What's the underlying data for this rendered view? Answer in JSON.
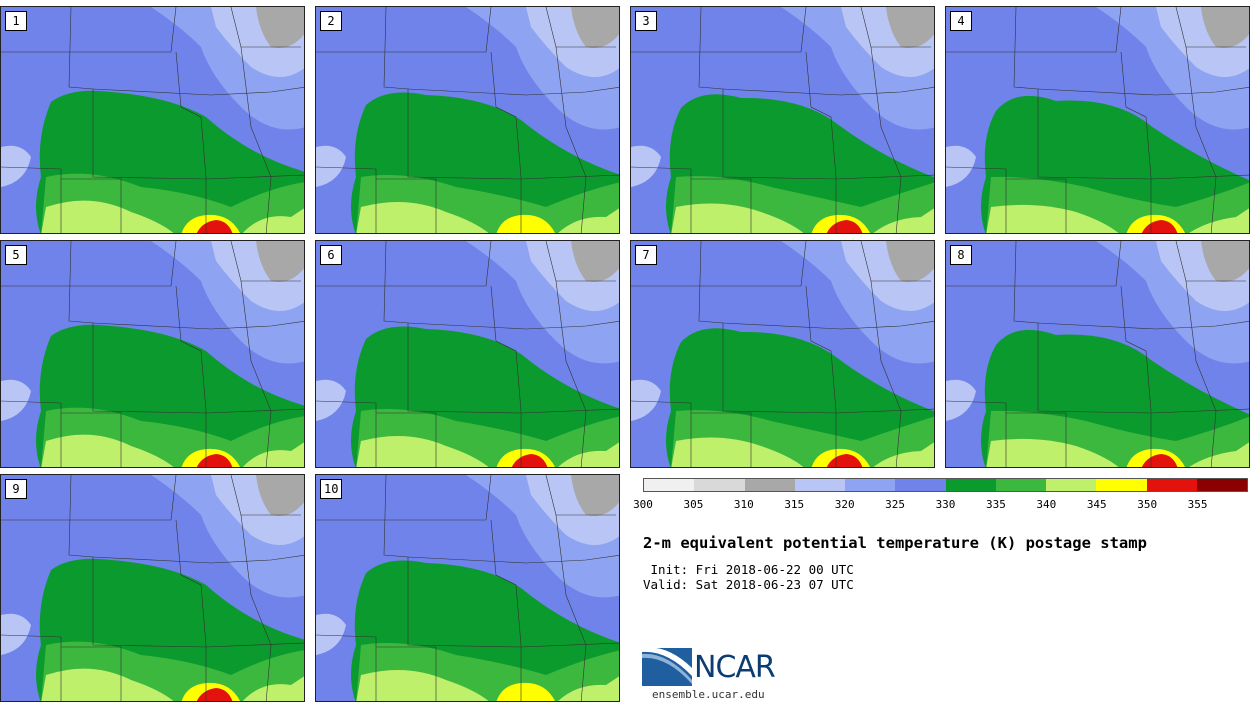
{
  "title": "2-m equivalent potential temperature (K) postage stamp",
  "init_line": " Init: Fri 2018-06-22 00 UTC",
  "valid_line": "Valid: Sat 2018-06-23 07 UTC",
  "logo_text": "NCAR",
  "logo_url": "ensemble.ucar.edu",
  "members": [
    "1",
    "2",
    "3",
    "4",
    "5",
    "6",
    "7",
    "8",
    "9",
    "10"
  ],
  "colorbar": {
    "ticks": [
      "300",
      "305",
      "310",
      "315",
      "320",
      "325",
      "330",
      "335",
      "340",
      "345",
      "350",
      "355"
    ],
    "colors": [
      "#f0f0f0",
      "#d9d9d9",
      "#a8a8a8",
      "#b9c6f5",
      "#8ea3f2",
      "#6f83ea",
      "#0b9a2e",
      "#3db83e",
      "#bff06c",
      "#ffff00",
      "#e3120c",
      "#8b0000"
    ]
  },
  "map_colors": {
    "background": "#6f83ea",
    "light_blue": "#8ea3f2",
    "pale_blue": "#b9c6f5",
    "gray": "#a8a8a8",
    "green_dark": "#0b9a2e",
    "green_mid": "#3db83e",
    "green_light": "#bff06c",
    "yellow": "#ffff00",
    "red": "#e3120c"
  },
  "member_intensity": [
    {
      "member": "1",
      "hot_spot": "red"
    },
    {
      "member": "2",
      "hot_spot": "yellow"
    },
    {
      "member": "3",
      "hot_spot": "red"
    },
    {
      "member": "4",
      "hot_spot": "red"
    },
    {
      "member": "5",
      "hot_spot": "red"
    },
    {
      "member": "6",
      "hot_spot": "red"
    },
    {
      "member": "7",
      "hot_spot": "red"
    },
    {
      "member": "8",
      "hot_spot": "red"
    },
    {
      "member": "9",
      "hot_spot": "red"
    },
    {
      "member": "10",
      "hot_spot": "yellow"
    }
  ]
}
